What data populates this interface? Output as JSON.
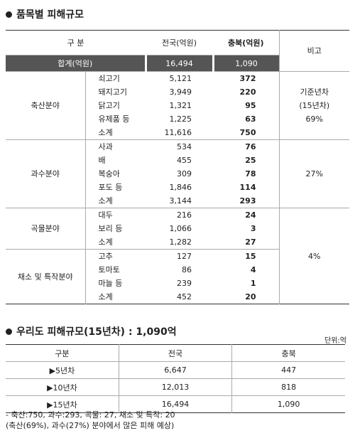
{
  "section1": {
    "title": "품목별 피해규모",
    "header": [
      "구 분",
      "전국(억원)",
      "충북(억원)",
      "비고"
    ],
    "total": [
      "합계(억원)",
      "16,494",
      "1,090"
    ],
    "groups": [
      {
        "name": "축산분야",
        "rows": [
          [
            "쇠고기",
            "5,121",
            "372"
          ],
          [
            "돼지고기",
            "3,949",
            "220"
          ],
          [
            "닭고기",
            "1,321",
            "95"
          ],
          [
            "유제품 등",
            "1,225",
            "63"
          ],
          [
            "소계",
            "11,616",
            "750"
          ]
        ]
      },
      {
        "name": "과수분야",
        "rows": [
          [
            "사과",
            "534",
            "76"
          ],
          [
            "배",
            "455",
            "25"
          ],
          [
            "복숭아",
            "309",
            "78"
          ],
          [
            "포도 등",
            "1,846",
            "114"
          ],
          [
            "소계",
            "3,144",
            "293"
          ]
        ]
      },
      {
        "name": "곡물분야",
        "rows": [
          [
            "대두",
            "216",
            "24"
          ],
          [
            "보리 등",
            "1,066",
            "3"
          ],
          [
            "소계",
            "1,282",
            "27"
          ]
        ]
      },
      {
        "name": "채소 및 특작분야",
        "rows": [
          [
            "고추",
            "127",
            "15"
          ],
          [
            "토마토",
            "86",
            "4"
          ],
          [
            "마늘 등",
            "239",
            "1"
          ],
          [
            "소계",
            "452",
            "20"
          ]
        ]
      }
    ],
    "notes": [
      [
        "기준년차",
        "(15년차)",
        "69%"
      ],
      [
        "27%"
      ],
      [
        "4%"
      ]
    ]
  },
  "section2": {
    "title": "우리도 피해규모(15년차) : 1,090억",
    "unit": "단위:억",
    "header": [
      "구분",
      "전국",
      "충북"
    ],
    "rows": [
      [
        "▶5년차",
        "6,647",
        "447"
      ],
      [
        "▶10년차",
        "12,013",
        "818"
      ],
      [
        "▶15년차",
        "16,494",
        "1,090"
      ]
    ],
    "notes": [
      "- 축산:750, 과수:293, 곡물: 27, 채소 및 특작: 20",
      "(축산(69%), 과수(27%) 분야에서 많은 피해 예상)"
    ]
  }
}
